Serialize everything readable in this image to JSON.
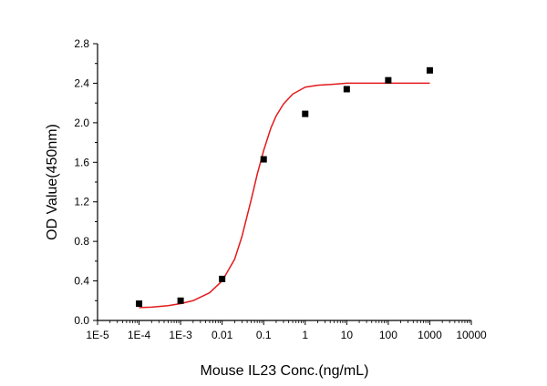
{
  "chart_data": {
    "type": "scatter",
    "title": "",
    "xlabel": "Mouse IL23 Conc.(ng/mL)",
    "ylabel": "OD Value(450nm)",
    "x_scale": "log",
    "xlim": [
      1e-05,
      10000
    ],
    "ylim": [
      0,
      2.8
    ],
    "grid": false,
    "x_tick_values": [
      1e-05,
      0.0001,
      0.001,
      0.01,
      0.1,
      1,
      10,
      100,
      1000,
      10000
    ],
    "x_tick_labels": [
      "1E-5",
      "1E-4",
      "1E-3",
      "0.01",
      "0.1",
      "1",
      "10",
      "100",
      "1000",
      "10000"
    ],
    "y_tick_values": [
      0,
      0.4,
      0.8,
      1.2,
      1.6,
      2.0,
      2.4,
      2.8
    ],
    "y_tick_labels": [
      "0.0",
      "0.4",
      "0.8",
      "1.2",
      "1.6",
      "2.0",
      "2.4",
      "2.8"
    ],
    "series": [
      {
        "kind": "points",
        "marker": "square",
        "color": "#000000",
        "x": [
          0.0001,
          0.001,
          0.01,
          0.1,
          1,
          10,
          100,
          1000
        ],
        "y": [
          0.17,
          0.2,
          0.42,
          1.63,
          2.09,
          2.34,
          2.43,
          2.53
        ]
      },
      {
        "kind": "fit_curve",
        "color": "#e31a1c",
        "x": [
          0.0001,
          0.0002,
          0.0005,
          0.001,
          0.002,
          0.005,
          0.01,
          0.02,
          0.03,
          0.05,
          0.07,
          0.1,
          0.15,
          0.2,
          0.3,
          0.5,
          1,
          2,
          5,
          10,
          100,
          1000
        ],
        "y": [
          0.13,
          0.135,
          0.15,
          0.17,
          0.2,
          0.28,
          0.4,
          0.62,
          0.85,
          1.22,
          1.48,
          1.72,
          1.95,
          2.07,
          2.19,
          2.29,
          2.36,
          2.38,
          2.39,
          2.4,
          2.4,
          2.4
        ]
      }
    ]
  }
}
